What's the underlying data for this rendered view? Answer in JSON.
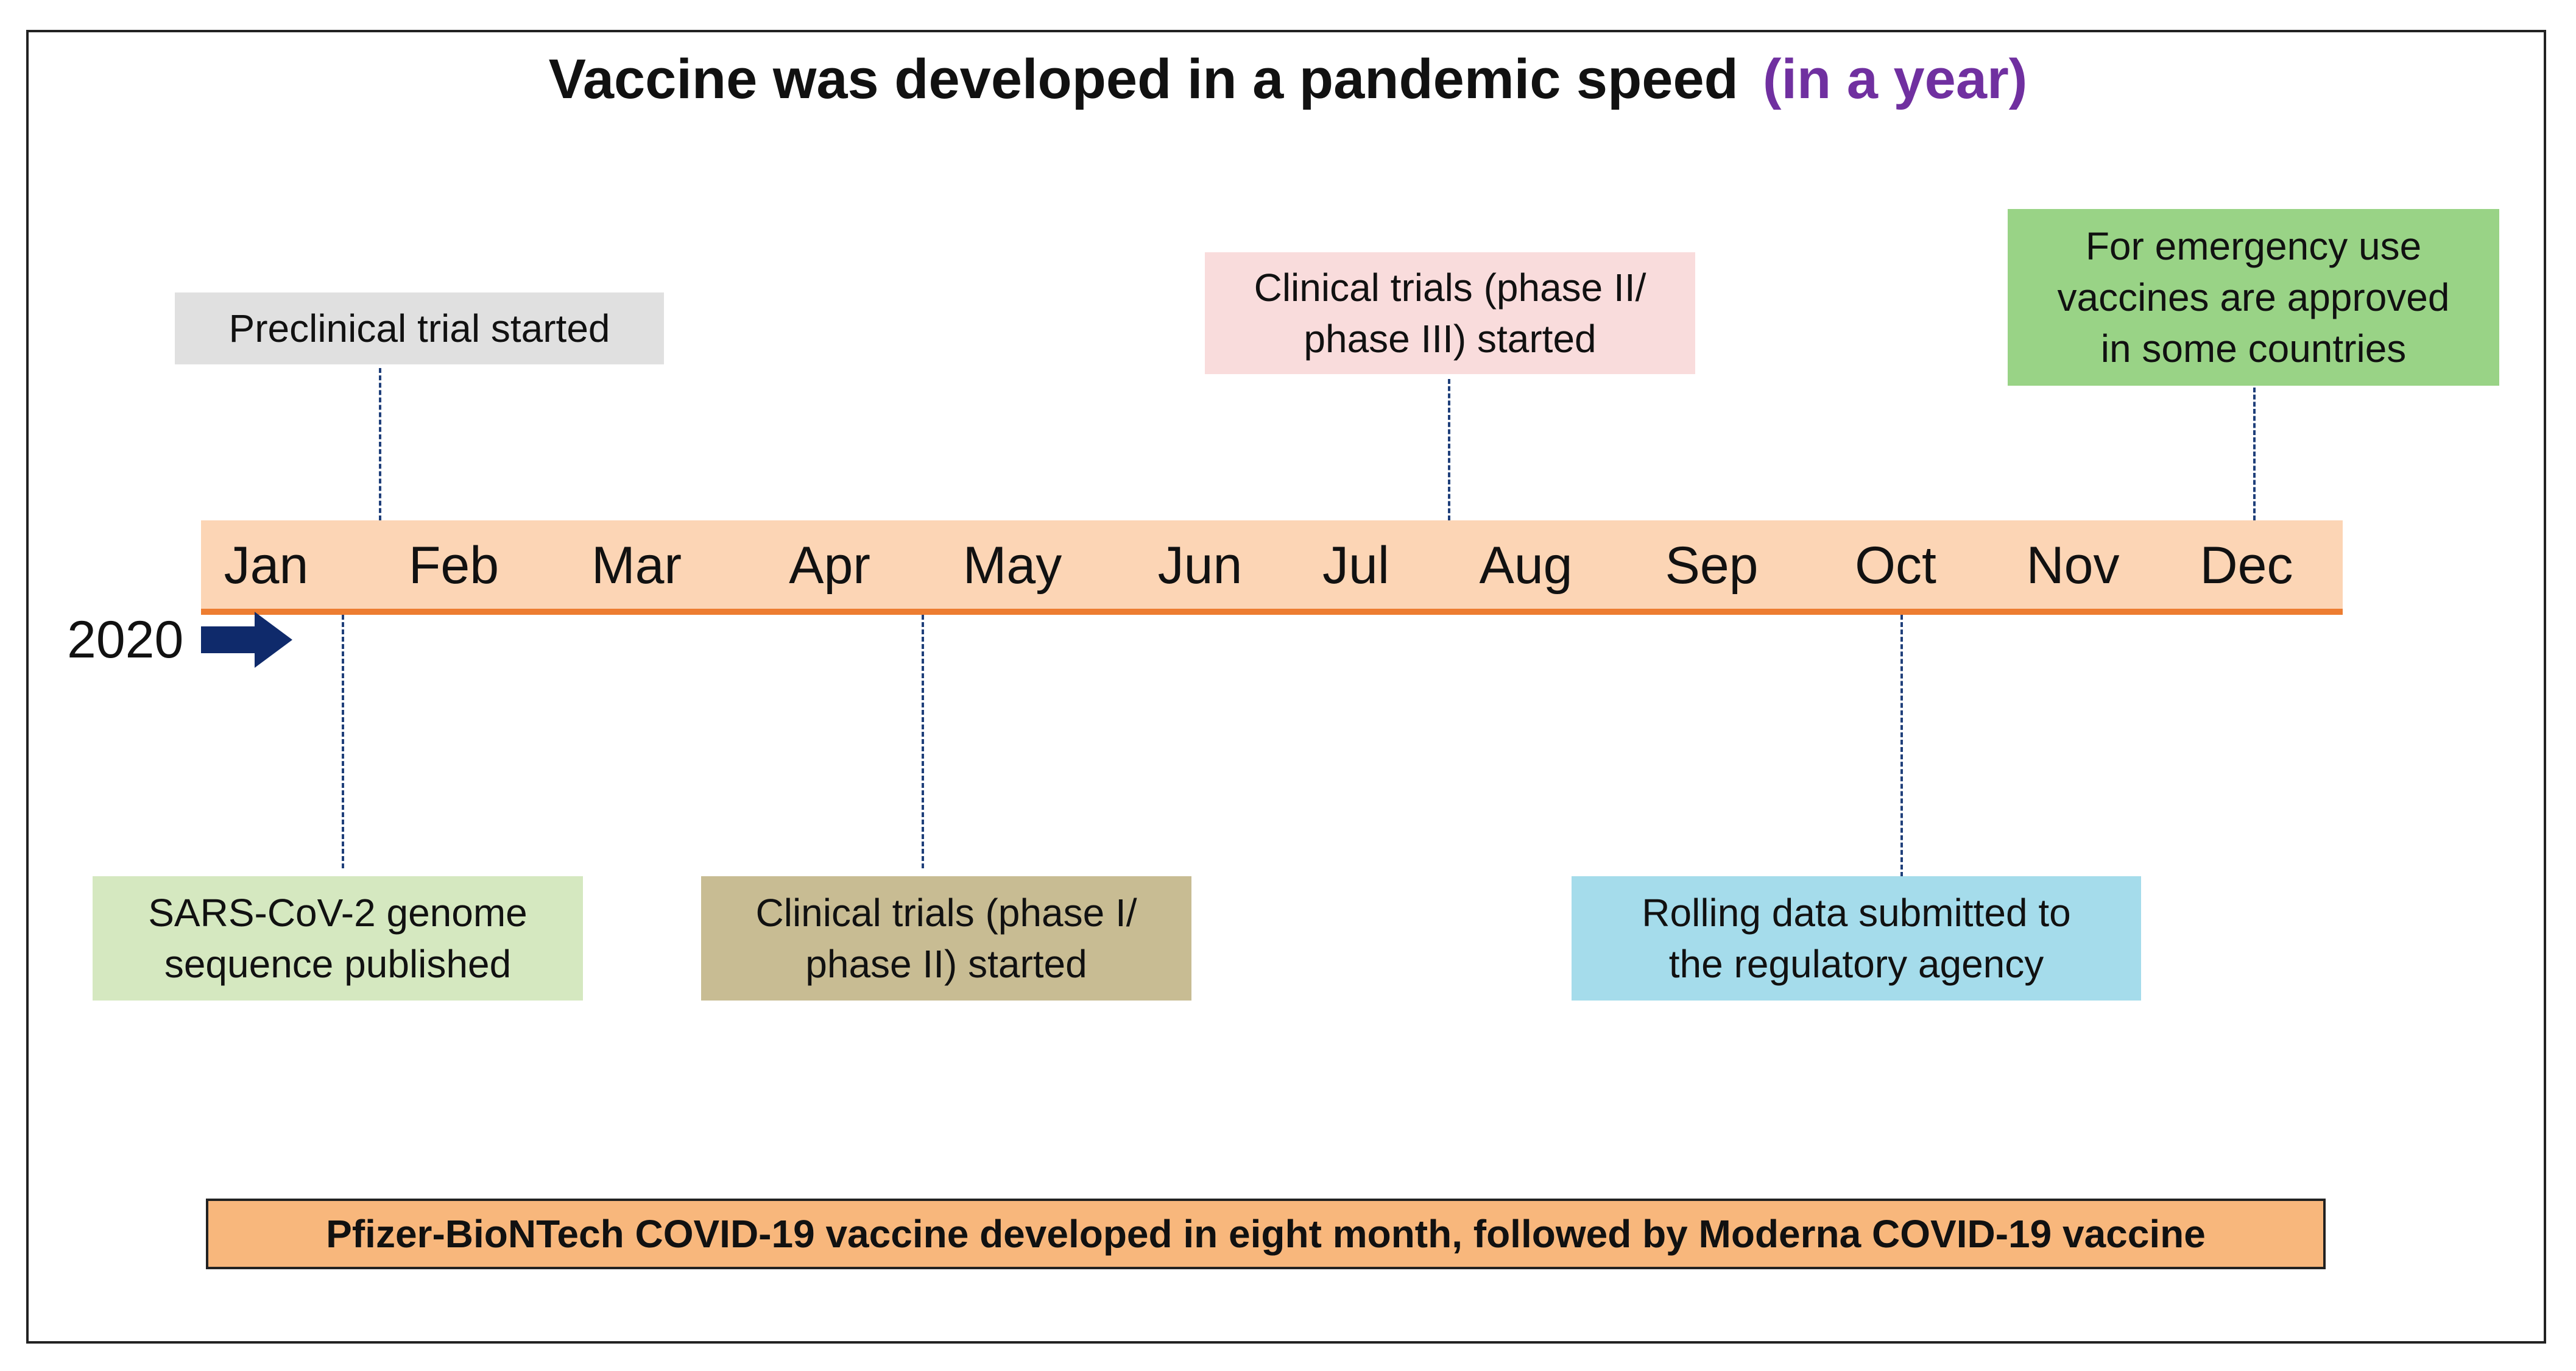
{
  "title": {
    "main": "Vaccine was developed in a pandemic speed",
    "accent": "(in a year)",
    "accent_color": "#7030a0"
  },
  "timeline": {
    "year": "2020",
    "months": [
      "Jan",
      "Feb",
      "Mar",
      "Apr",
      "May",
      "Jun",
      "Jul",
      "Aug",
      "Sep",
      "Oct",
      "Nov",
      "Dec"
    ],
    "bar_color": "#fcd5b5",
    "line_color": "#ed7d31",
    "arrow_color": "#0f2a6b"
  },
  "events": [
    {
      "lines": [
        "Preclinical trial started"
      ],
      "color": "#e0e0e0"
    },
    {
      "lines": [
        "Clinical trials (phase II/",
        "phase III) started"
      ],
      "color": "#f9dcdc"
    },
    {
      "lines": [
        "For emergency use",
        "vaccines are approved",
        "in some countries"
      ],
      "color": "#99d386"
    },
    {
      "lines": [
        "SARS-CoV-2 genome",
        "sequence published"
      ],
      "color": "#d5e8c0"
    },
    {
      "lines": [
        "Clinical trials (phase I/",
        "phase II) started"
      ],
      "color": "#c8bc93"
    },
    {
      "lines": [
        "Rolling data submitted to",
        "the regulatory agency"
      ],
      "color": "#a5dceb"
    }
  ],
  "footer": {
    "text": "Pfizer-BioNTech COVID-19 vaccine developed in eight month, followed by Moderna COVID-19 vaccine",
    "color": "#f8b77c"
  }
}
